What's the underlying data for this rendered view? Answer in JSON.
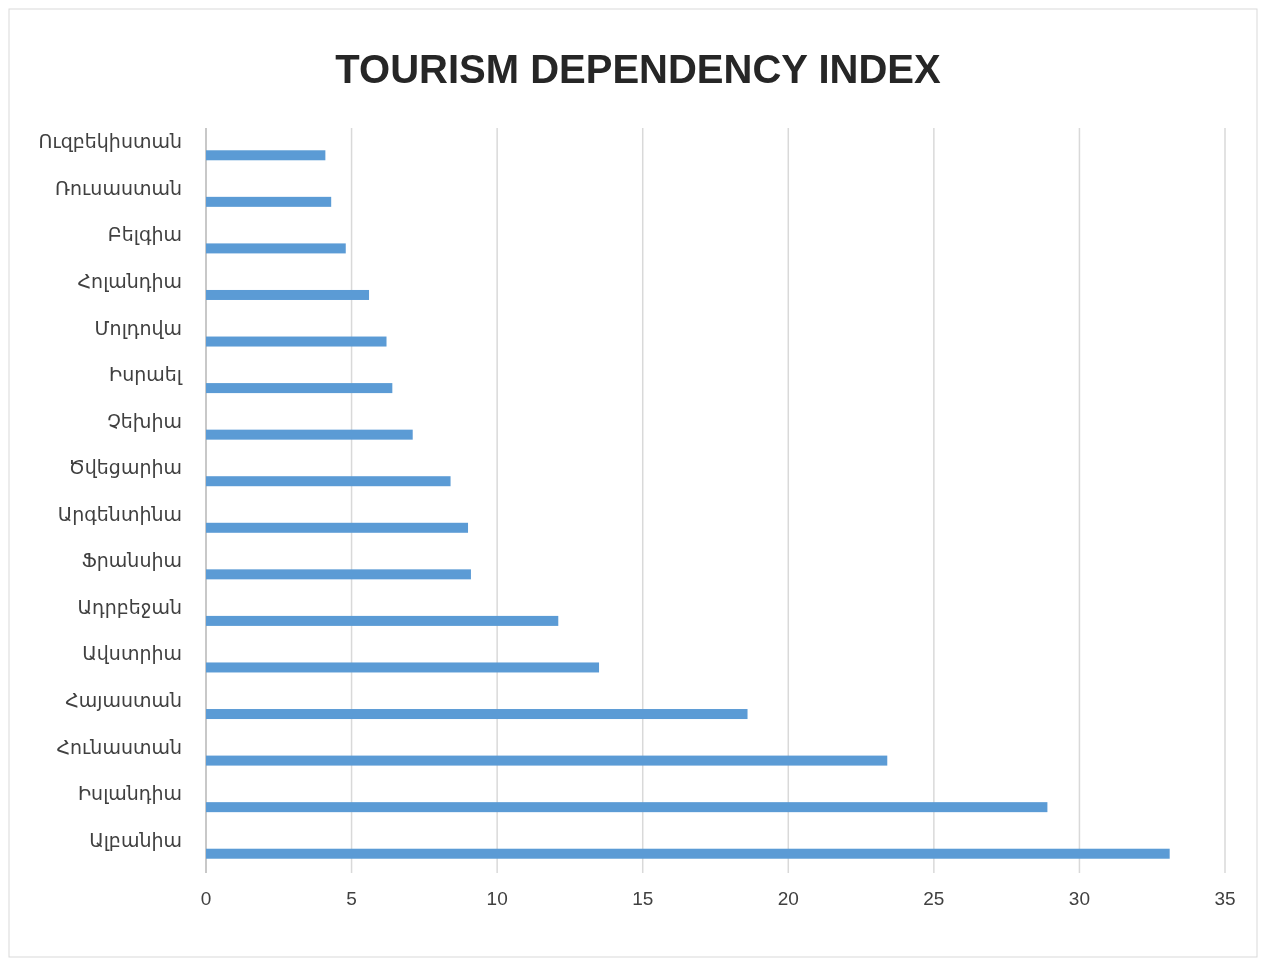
{
  "chart_data": {
    "type": "bar",
    "orientation": "horizontal",
    "title": "TOURISM DEPENDENCY INDEX",
    "categories": [
      "Ուզբեկիստան",
      "Ռուսաստան",
      "Բելգիա",
      "Հոլանդիա",
      "Մոլդովա",
      "Իսրաել",
      "Չեխիա",
      "Ծվեցարիա",
      "Արգենտինա",
      "Ֆրանսիա",
      "Ադրբեջան",
      "Ավստրիա",
      "Հայաստան",
      "Հունաստան",
      "Իսլանդիա",
      "Ալբանիա"
    ],
    "values": [
      4.1,
      4.3,
      4.8,
      5.6,
      6.2,
      6.4,
      7.1,
      8.4,
      9.0,
      9.1,
      12.1,
      13.5,
      18.6,
      23.4,
      28.9,
      33.1
    ],
    "color": "#5b9bd5",
    "xlim": [
      0,
      35
    ],
    "xticks": [
      0,
      5,
      10,
      15,
      20,
      25,
      30,
      35
    ],
    "grid": "x"
  }
}
